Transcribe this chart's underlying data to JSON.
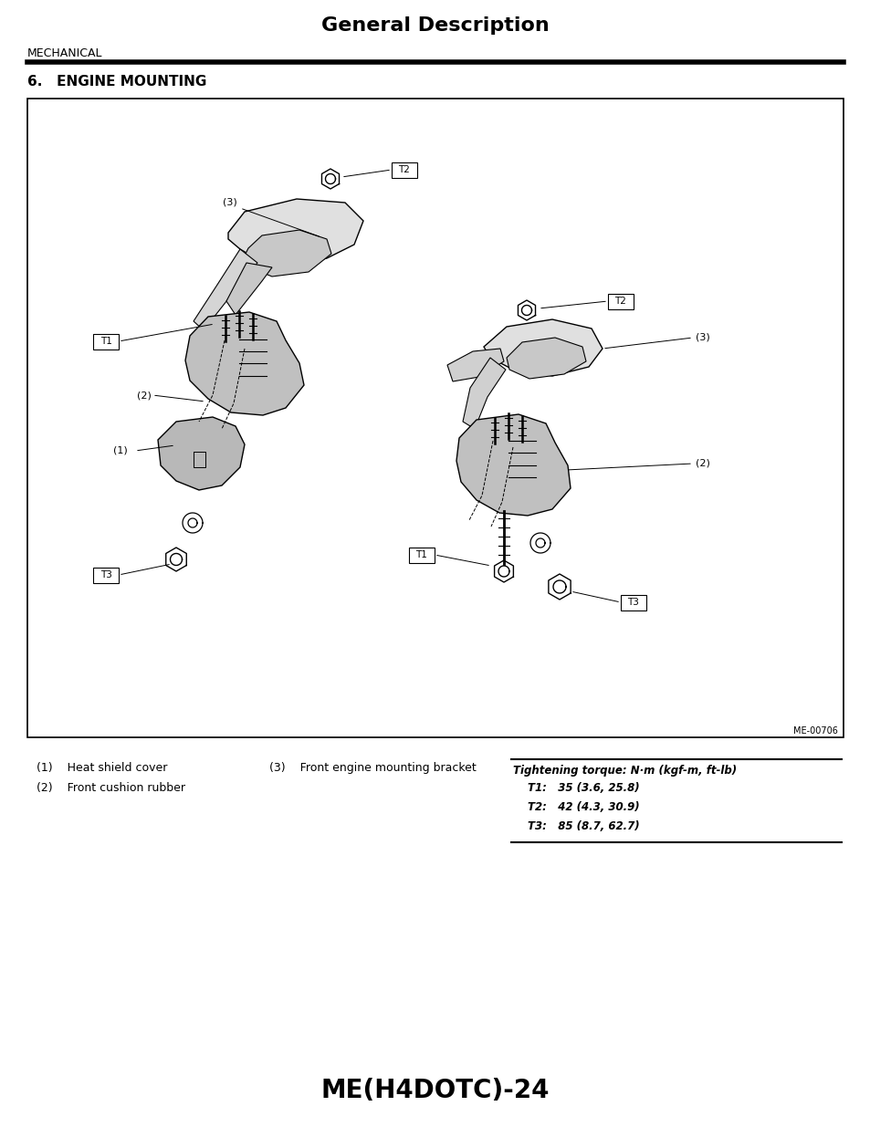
{
  "title": "General Description",
  "section_label": "MECHANICAL",
  "section_heading": "6.   ENGINE MOUNTING",
  "page_id": "ME-00706",
  "page_number": "ME(H4DOTC)-24",
  "bg_color": "#ffffff",
  "border_color": "#000000",
  "caption_items": [
    "(1)    Heat shield cover",
    "(2)    Front cushion rubber"
  ],
  "caption_items2": [
    "(3)    Front engine mounting bracket"
  ],
  "torque_header": "Tightening torque: N·m (kgf-m, ft-lb)",
  "torque_lines": [
    "T1:   35 (3.6, 25.8)",
    "T2:   42 (4.3, 30.9)",
    "T3:   85 (8.7, 62.7)"
  ]
}
